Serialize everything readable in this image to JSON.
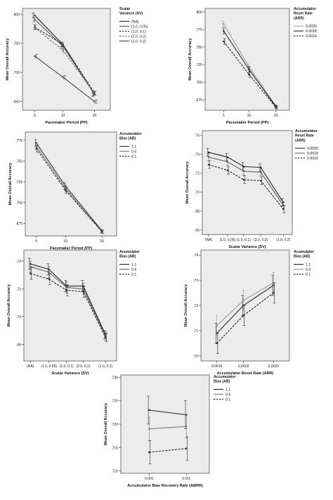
{
  "chart_data": [
    {
      "type": "line",
      "ylabel": "Mean Overall Accuracy",
      "xlabel": "Pacemaker Period (PP)",
      "categories": [
        "5",
        "10",
        "20"
      ],
      "yticks": [
        ".650",
        ".700",
        ".750",
        ".800"
      ],
      "ylim": [
        0.635,
        0.81
      ],
      "legend_title": "Scalar Variance (SV)",
      "series": [
        {
          "name": "(NA)",
          "style": "solid",
          "color": "#222222",
          "values": [
            0.798,
            0.748,
            0.662
          ],
          "err": [
            0.004,
            0.004,
            0.003
          ]
        },
        {
          "name": "(1.0, 0.05)",
          "style": "solid",
          "color": "#555555",
          "values": [
            0.791,
            0.745,
            0.663
          ],
          "err": [
            0.004,
            0.004,
            0.003
          ]
        },
        {
          "name": "(1.0, 0.1)",
          "style": "dashed",
          "color": "#333333",
          "values": [
            0.778,
            0.748,
            0.665
          ],
          "err": [
            0.004,
            0.004,
            0.003
          ]
        },
        {
          "name": "(2.0, 0.2)",
          "style": "dashed",
          "color": "#777777",
          "values": [
            0.777,
            0.738,
            0.664
          ],
          "err": [
            0.004,
            0.004,
            0.003
          ]
        },
        {
          "name": "(1.0, 0.2)",
          "style": "solid",
          "color": "#444444",
          "values": [
            0.728,
            0.692,
            0.65
          ],
          "err": [
            0.003,
            0.003,
            0.003
          ]
        }
      ]
    },
    {
      "type": "line",
      "ylabel": "Mean Overall Accuracy",
      "xlabel": "Pacemaker Period (PP)",
      "categories": [
        "5",
        "10",
        "20"
      ],
      "yticks": [
        ".675",
        ".700",
        ".725",
        ".750",
        ".775",
        ".800"
      ],
      "ylim": [
        0.66,
        0.805
      ],
      "legend_title": "Accumulator Reset Rate (ARR)",
      "series": [
        {
          "name": "0.0020",
          "style": "solid",
          "color": "#999999",
          "values": [
            0.783,
            0.722,
            0.666
          ],
          "err": [
            0.004,
            0.004,
            0.002
          ]
        },
        {
          "name": "0.0018",
          "style": "solid",
          "color": "#222222",
          "values": [
            0.773,
            0.718,
            0.665
          ],
          "err": [
            0.004,
            0.004,
            0.002
          ]
        },
        {
          "name": "0.0016",
          "style": "dashed",
          "color": "#222222",
          "values": [
            0.758,
            0.711,
            0.664
          ],
          "err": [
            0.004,
            0.004,
            0.002
          ]
        }
      ]
    },
    {
      "type": "line",
      "ylabel": "Mean Overall Accuracy",
      "xlabel": "Pacemaker Period (PP)",
      "categories": [
        "5",
        "10",
        "20"
      ],
      "yticks": [
        ".675",
        ".700",
        ".725",
        ".750",
        ".775"
      ],
      "ylim": [
        0.66,
        0.785
      ],
      "legend_title": "Accumulator Bias (AB)",
      "series": [
        {
          "name": "1.1",
          "style": "solid",
          "color": "#333333",
          "values": [
            0.772,
            0.72,
            0.666
          ],
          "err": [
            0.004,
            0.004,
            0.002
          ]
        },
        {
          "name": "0.6",
          "style": "solid",
          "color": "#777777",
          "values": [
            0.768,
            0.717,
            0.665
          ],
          "err": [
            0.004,
            0.004,
            0.002
          ]
        },
        {
          "name": "0.1",
          "style": "dashed",
          "color": "#333333",
          "values": [
            0.765,
            0.715,
            0.665
          ],
          "err": [
            0.004,
            0.004,
            0.002
          ]
        }
      ]
    },
    {
      "type": "line",
      "ylabel": "Mean Overall Accuracy",
      "xlabel": "Scalar Variance (SV)",
      "categories": [
        "(NA)",
        "(1.0, 0.05)",
        "(1.0, 0.1)",
        "(2.0, 0.2)",
        "(1.0, 0.2)"
      ],
      "yticks": [
        ".66",
        ".68",
        ".70",
        ".72",
        ".74",
        ".76"
      ],
      "ylim": [
        0.655,
        0.765
      ],
      "legend_title": "Accumulator Reset Rate (ARR)",
      "series": [
        {
          "name": "0.0020",
          "style": "solid",
          "color": "#222222",
          "values": [
            0.742,
            0.737,
            0.727,
            0.726,
            0.689
          ],
          "err": [
            0.004,
            0.004,
            0.004,
            0.004,
            0.004
          ]
        },
        {
          "name": "0.0018",
          "style": "solid",
          "color": "#666666",
          "values": [
            0.737,
            0.732,
            0.722,
            0.721,
            0.686
          ],
          "err": [
            0.004,
            0.004,
            0.004,
            0.004,
            0.004
          ]
        },
        {
          "name": "0.0016",
          "style": "dashed",
          "color": "#222222",
          "values": [
            0.729,
            0.723,
            0.713,
            0.712,
            0.682
          ],
          "err": [
            0.004,
            0.004,
            0.004,
            0.004,
            0.004
          ]
        }
      ]
    },
    {
      "type": "line",
      "ylabel": "Mean Overall Accuracy",
      "xlabel": "Scalar Variance (SV)",
      "categories": [
        "(NA)",
        "(1.0, 0.05)",
        "(1.0, 0.1)",
        "(2.0, 0.2)",
        "(1.0, 0.2)"
      ],
      "yticks": [
        ".68",
        ".70",
        ".72",
        ".74"
      ],
      "ylim": [
        0.668,
        0.748
      ],
      "legend_title": "Acumulator Bias (AB)",
      "series": [
        {
          "name": "1.1",
          "style": "solid",
          "color": "#222222",
          "values": [
            0.738,
            0.734,
            0.722,
            0.722,
            0.687
          ],
          "err": [
            0.004,
            0.004,
            0.004,
            0.004,
            0.003
          ]
        },
        {
          "name": "0.6",
          "style": "solid",
          "color": "#666666",
          "values": [
            0.736,
            0.732,
            0.721,
            0.72,
            0.686
          ],
          "err": [
            0.004,
            0.004,
            0.004,
            0.004,
            0.003
          ]
        },
        {
          "name": "0.1",
          "style": "dashed",
          "color": "#222222",
          "values": [
            0.731,
            0.727,
            0.719,
            0.718,
            0.685
          ],
          "err": [
            0.004,
            0.004,
            0.004,
            0.004,
            0.003
          ]
        }
      ]
    },
    {
      "type": "line",
      "ylabel": "Mean Overall Accuracy",
      "xlabel": "Accumulator Reset Rate (ARR)",
      "categories": [
        "0.0016",
        "0.0018",
        "0.0020"
      ],
      "yticks": [
        ".70",
        ".71",
        ".72",
        ".73",
        ".74"
      ],
      "ylim": [
        0.698,
        0.742
      ],
      "legend_title": "Acumulator Bias (AB)",
      "series": [
        {
          "name": "1.1",
          "style": "solid",
          "color": "#222222",
          "values": [
            0.709,
            0.72,
            0.728
          ],
          "err": [
            0.004,
            0.004,
            0.004
          ]
        },
        {
          "name": "0.6",
          "style": "solid",
          "color": "#999999",
          "values": [
            0.712,
            0.722,
            0.729
          ],
          "err": [
            0.004,
            0.004,
            0.004
          ]
        },
        {
          "name": "0.1",
          "style": "dashed",
          "color": "#222222",
          "values": [
            0.705,
            0.716,
            0.725
          ],
          "err": [
            0.004,
            0.004,
            0.004
          ]
        }
      ]
    },
    {
      "type": "line",
      "ylabel": "Mean Overall Accuracy",
      "xlabel": "Accumulator Bias Recovery Rate (ABRR)",
      "categories": [
        "0.001",
        "0.011"
      ],
      "yticks": [
        ".710",
        ".715",
        ".720",
        ".725",
        ".730"
      ],
      "ylim": [
        0.7095,
        0.7305
      ],
      "legend_title": "Accumulator Bias (AB)",
      "series": [
        {
          "name": "1.1",
          "style": "solid",
          "color": "#222222",
          "values": [
            0.723,
            0.722
          ],
          "err": [
            0.003,
            0.003
          ]
        },
        {
          "name": "0.6",
          "style": "solid",
          "color": "#777777",
          "values": [
            0.719,
            0.7195
          ],
          "err": [
            0.0025,
            0.0025
          ]
        },
        {
          "name": "0.1",
          "style": "dashed",
          "color": "#222222",
          "values": [
            0.714,
            0.7148
          ],
          "err": [
            0.0025,
            0.0025
          ]
        }
      ]
    }
  ]
}
